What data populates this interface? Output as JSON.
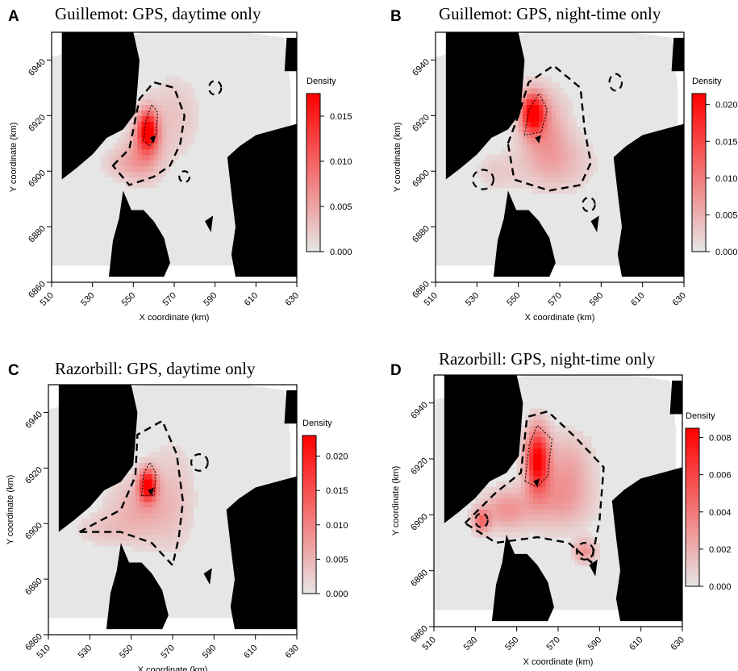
{
  "chart_data": [
    {
      "type": "heatmap",
      "panel": "A",
      "title": "Guillemot: GPS, daytime only",
      "xlabel": "X coordinate (km)",
      "ylabel": "Y coordinate (km)",
      "x_ticks": [
        "510",
        "530",
        "550",
        "570",
        "590",
        "610",
        "630"
      ],
      "y_ticks": [
        "6860",
        "6880",
        "6900",
        "6920",
        "6940"
      ],
      "xlim": [
        510,
        630
      ],
      "ylim": [
        6860,
        6950
      ],
      "legend_title": "Density",
      "legend_ticks": [
        "0.000",
        "0.005",
        "0.010",
        "0.015"
      ],
      "legend_max": 0.0175,
      "hotspots": [
        {
          "x": 557,
          "y": 6915,
          "density": 0.017
        }
      ]
    },
    {
      "type": "heatmap",
      "panel": "B",
      "title": "Guillemot: GPS, night-time only",
      "xlabel": "X coordinate (km)",
      "ylabel": "Y coordinate (km)",
      "x_ticks": [
        "510",
        "530",
        "550",
        "570",
        "590",
        "610",
        "630"
      ],
      "y_ticks": [
        "6860",
        "6880",
        "6900",
        "6920",
        "6940"
      ],
      "xlim": [
        510,
        630
      ],
      "ylim": [
        6860,
        6950
      ],
      "legend_title": "Density",
      "legend_ticks": [
        "0.000",
        "0.005",
        "0.010",
        "0.015",
        "0.020"
      ],
      "legend_max": 0.0215,
      "hotspots": [
        {
          "x": 557,
          "y": 6921,
          "density": 0.021
        }
      ]
    },
    {
      "type": "heatmap",
      "panel": "C",
      "title": "Razorbill: GPS, daytime only",
      "xlabel": "X coordinate (km)",
      "ylabel": "Y coordinate (km)",
      "x_ticks": [
        "510",
        "530",
        "550",
        "570",
        "590",
        "610",
        "630"
      ],
      "y_ticks": [
        "6860",
        "6880",
        "6900",
        "6920",
        "6940"
      ],
      "xlim": [
        510,
        630
      ],
      "ylim": [
        6860,
        6950
      ],
      "legend_title": "Density",
      "legend_ticks": [
        "0.000",
        "0.005",
        "0.010",
        "0.015",
        "0.020"
      ],
      "legend_max": 0.023,
      "hotspots": [
        {
          "x": 558,
          "y": 6914,
          "density": 0.022
        }
      ]
    },
    {
      "type": "heatmap",
      "panel": "D",
      "title": "Razorbill: GPS, night-time only",
      "xlabel": "X coordinate (km)",
      "ylabel": "Y coordinate (km)",
      "x_ticks": [
        "510",
        "530",
        "550",
        "570",
        "590",
        "610",
        "630"
      ],
      "y_ticks": [
        "6860",
        "6880",
        "6900",
        "6920",
        "6940"
      ],
      "xlim": [
        510,
        630
      ],
      "ylim": [
        6860,
        6950
      ],
      "legend_title": "Density",
      "legend_ticks": [
        "0.000",
        "0.002",
        "0.004",
        "0.006",
        "0.008"
      ],
      "legend_max": 0.0085,
      "hotspots": [
        {
          "x": 560,
          "y": 6920,
          "density": 0.008
        },
        {
          "x": 533,
          "y": 6898,
          "density": 0.004
        },
        {
          "x": 583,
          "y": 6886,
          "density": 0.003
        }
      ]
    }
  ],
  "colors": {
    "land": "#000000",
    "sea": "#e6e6e6",
    "density_low": "#e6e6e6",
    "density_high": "#ff0000"
  }
}
